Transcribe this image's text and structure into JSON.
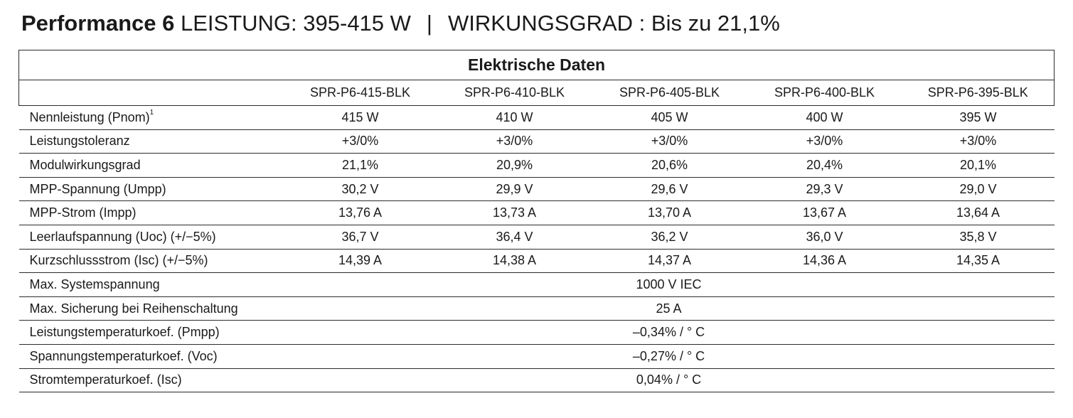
{
  "heading": {
    "model": "Performance 6",
    "power": "LEISTUNG: 395-415 W",
    "separator": "|",
    "efficiency": "WIRKUNGSGRAD : Bis zu 21,1%"
  },
  "table": {
    "title": "Elektrische Daten",
    "columns": [
      "SPR-P6-415-BLK",
      "SPR-P6-410-BLK",
      "SPR-P6-405-BLK",
      "SPR-P6-400-BLK",
      "SPR-P6-395-BLK"
    ],
    "rows": [
      {
        "label": "Nennleistung (Pnom)",
        "sup": "1",
        "values": [
          "415 W",
          "410 W",
          "405 W",
          "400 W",
          "395 W"
        ]
      },
      {
        "label": "Leistungstoleranz",
        "values": [
          "+3/0%",
          "+3/0%",
          "+3/0%",
          "+3/0%",
          "+3/0%"
        ]
      },
      {
        "label": "Modulwirkungsgrad",
        "values": [
          "21,1%",
          "20,9%",
          "20,6%",
          "20,4%",
          "20,1%"
        ]
      },
      {
        "label": "MPP-Spannung (Umpp)",
        "values": [
          "30,2 V",
          "29,9 V",
          "29,6 V",
          "29,3 V",
          "29,0 V"
        ]
      },
      {
        "label": "MPP-Strom (Impp)",
        "values": [
          "13,76 A",
          "13,73 A",
          "13,70 A",
          "13,67 A",
          "13,64 A"
        ]
      },
      {
        "label": "Leerlaufspannung (Uoc) (+/−5%)",
        "values": [
          "36,7 V",
          "36,4 V",
          "36,2 V",
          "36,0 V",
          "35,8 V"
        ]
      },
      {
        "label": "Kurzschlussstrom (Isc) (+/−5%)",
        "values": [
          "14,39 A",
          "14,38 A",
          "14,37 A",
          "14,36 A",
          "14,35 A"
        ]
      }
    ],
    "shared_rows": [
      {
        "label": "Max. Systemspannung",
        "value": "1000 V IEC"
      },
      {
        "label": "Max. Sicherung bei Reihenschaltung",
        "value": "25 A"
      },
      {
        "label": "Leistungstemperaturkoef. (Pmpp)",
        "value": "–0,34% / ° C"
      },
      {
        "label": "Spannungstemperaturkoef. (Voc)",
        "value": "–0,27% / ° C"
      },
      {
        "label": "Stromtemperaturkoef. (Isc)",
        "value": "0,04% / ° C"
      }
    ]
  }
}
